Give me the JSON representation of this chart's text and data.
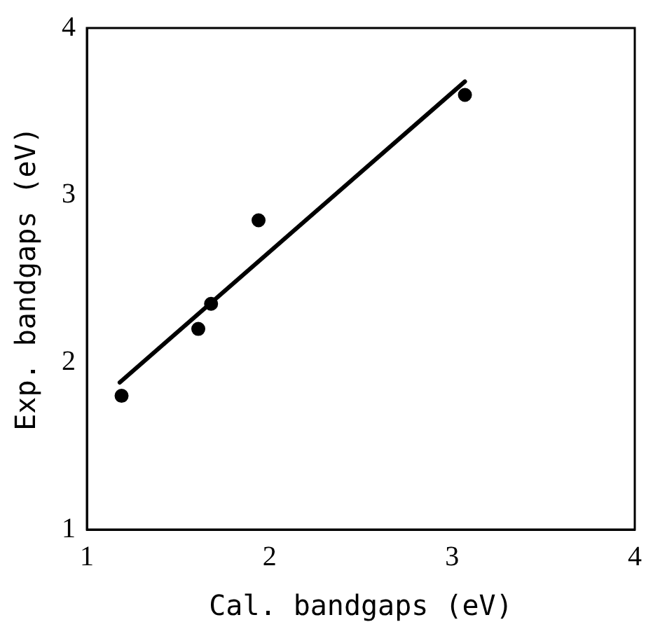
{
  "chart_data": {
    "type": "scatter",
    "xlabel": "Cal. bandgaps (eV)",
    "ylabel": "Exp. bandgaps (eV)",
    "xlim": [
      1,
      4
    ],
    "ylim": [
      1,
      4
    ],
    "xticks": [
      1,
      2,
      3,
      4
    ],
    "yticks": [
      1,
      2,
      3,
      4
    ],
    "grid": false,
    "legend": false,
    "marker": "circle",
    "series": [
      {
        "color": "#000000",
        "x": [
          1.19,
          1.61,
          1.68,
          1.94,
          3.07
        ],
        "values": [
          1.8,
          2.2,
          2.35,
          2.85,
          3.6
        ]
      },
      {
        "type": "line",
        "color": "#000000",
        "x": [
          1.18,
          3.07
        ],
        "values": [
          1.88,
          3.68
        ],
        "marker": "none"
      }
    ]
  }
}
